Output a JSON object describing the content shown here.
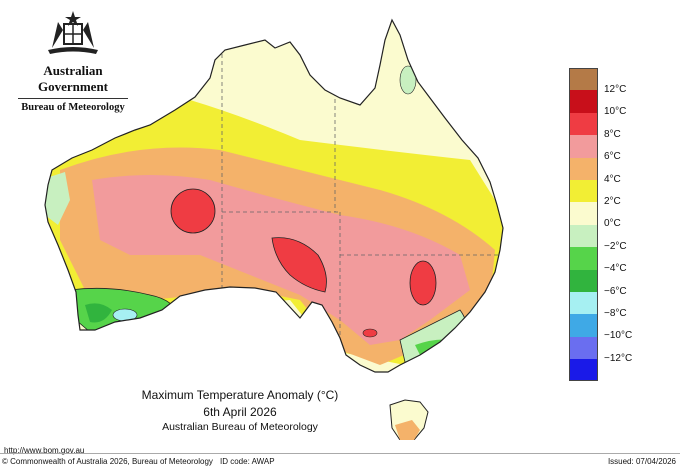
{
  "header": {
    "government": "Australian Government",
    "bureau": "Bureau of Meteorology"
  },
  "legend": {
    "items": [
      {
        "label": "12°C",
        "color": "#b47a47"
      },
      {
        "label": "10°C",
        "color": "#c80f1a"
      },
      {
        "label": "8°C",
        "color": "#ef3c43"
      },
      {
        "label": "6°C",
        "color": "#f29b9c"
      },
      {
        "label": "4°C",
        "color": "#f4b26a"
      },
      {
        "label": "2°C",
        "color": "#f2ee34"
      },
      {
        "label": "0°C",
        "color": "#fbfbcf"
      },
      {
        "label": "−2°C",
        "color": "#c8f0c0"
      },
      {
        "label": "−4°C",
        "color": "#56d44a"
      },
      {
        "label": "−6°C",
        "color": "#31b43e"
      },
      {
        "label": "−8°C",
        "color": "#a6f0f2"
      },
      {
        "label": "−10°C",
        "color": "#3fa9e6"
      },
      {
        "label": "−12°C",
        "color": "#6a6ef0"
      },
      {
        "label": "",
        "color": "#1a1ae8"
      }
    ]
  },
  "map": {
    "colors": {
      "background": "#fbfbcf",
      "yellow": "#f2ee34",
      "orange": "#f4b26a",
      "pink": "#f29b9c",
      "red": "#ef3c43",
      "lightgreen": "#c8f0c0",
      "green": "#56d44a",
      "darkgreen": "#31b43e",
      "cyan": "#a6f0f2"
    }
  },
  "caption": {
    "line1": "Maximum Temperature Anomaly (°C)",
    "line2": "6th April 2026",
    "line3": "Australian Bureau of Meteorology"
  },
  "footer": {
    "url": "http://www.bom.gov.au",
    "copyright": "© Commonwealth of Australia 2026, Bureau of Meteorology",
    "id_code": "ID code: AWAP",
    "issued": "Issued: 07/04/2026"
  }
}
